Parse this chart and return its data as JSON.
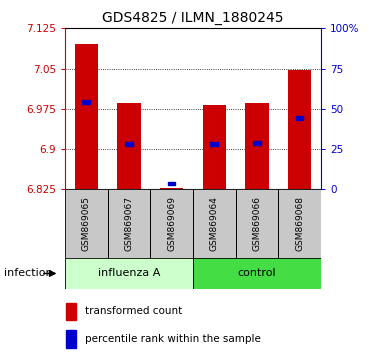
{
  "title": "GDS4825 / ILMN_1880245",
  "samples": [
    "GSM869065",
    "GSM869067",
    "GSM869069",
    "GSM869064",
    "GSM869066",
    "GSM869068"
  ],
  "ylim": [
    6.825,
    7.125
  ],
  "yticks": [
    6.825,
    6.9,
    6.975,
    7.05,
    7.125
  ],
  "ytick_labels": [
    "6.825",
    "6.9",
    "6.975",
    "7.05",
    "7.125"
  ],
  "right_yticks": [
    0,
    25,
    50,
    75,
    100
  ],
  "right_ytick_labels": [
    "0",
    "25",
    "50",
    "75",
    "100%"
  ],
  "bar_bottom": 6.825,
  "red_tops": [
    7.095,
    6.985,
    6.828,
    6.983,
    6.985,
    7.048
  ],
  "blue_values": [
    6.988,
    6.91,
    6.836,
    6.91,
    6.911,
    6.958
  ],
  "bar_color": "#cc0000",
  "blue_color": "#0000cc",
  "bar_width": 0.55,
  "legend_red_label": "transformed count",
  "legend_blue_label": "percentile rank within the sample",
  "bg_color": "#ffffff",
  "grid_color": "#000000",
  "left_axis_color": "#cc0000",
  "right_axis_color": "#0000cc",
  "xticklabel_bg": "#c8c8c8",
  "influenza_color": "#ccffcc",
  "control_color": "#44dd44",
  "infection_label": "infection",
  "group_defs": [
    [
      0,
      2,
      "influenza A"
    ],
    [
      3,
      5,
      "control"
    ]
  ]
}
